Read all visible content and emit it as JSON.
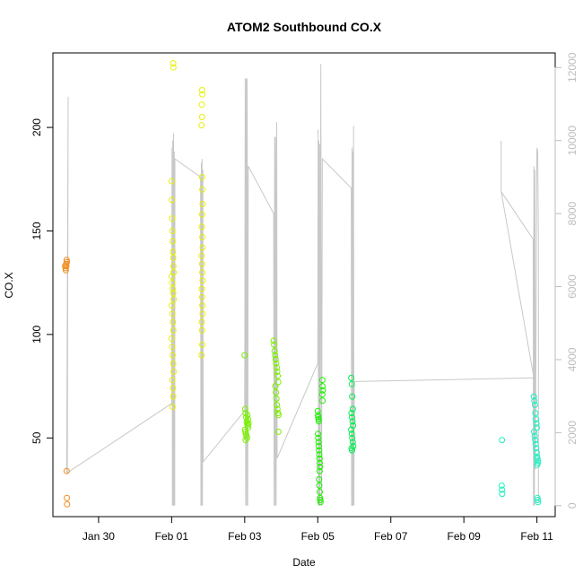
{
  "chart_data": {
    "type": "scatter",
    "title": "ATOM2 Southbound CO.X",
    "xlabel": "Date",
    "ylabel": "CO.X",
    "xlim": [
      "2020-01-28T18:00",
      "2020-02-11T12:00"
    ],
    "ylim": [
      12,
      236
    ],
    "y2lim": [
      -300,
      12400
    ],
    "y2label": "",
    "grid": false,
    "x_ticks": [
      {
        "date": "2020-01-30T00:00",
        "label": "Jan 30"
      },
      {
        "date": "2020-02-01T00:00",
        "label": "Feb 01"
      },
      {
        "date": "2020-02-03T00:00",
        "label": "Feb 03"
      },
      {
        "date": "2020-02-05T00:00",
        "label": "Feb 05"
      },
      {
        "date": "2020-02-07T00:00",
        "label": "Feb 07"
      },
      {
        "date": "2020-02-09T00:00",
        "label": "Feb 09"
      },
      {
        "date": "2020-02-11T00:00",
        "label": "Feb 11"
      }
    ],
    "y_ticks": [
      50,
      100,
      150,
      200
    ],
    "y2_ticks": [
      0,
      2000,
      4000,
      6000,
      8000,
      10000,
      12000
    ],
    "series": [
      {
        "kind": "points",
        "color": "#f28c1e",
        "points": [
          [
            "2020-01-29T02:00",
            133
          ],
          [
            "2020-01-29T02:20",
            132
          ],
          [
            "2020-01-29T02:40",
            134
          ],
          [
            "2020-01-29T03:00",
            136
          ],
          [
            "2020-01-29T03:10",
            135
          ],
          [
            "2020-01-29T02:30",
            131
          ],
          [
            "2020-01-29T02:50",
            133
          ],
          [
            "2020-01-29T03:00",
            34
          ],
          [
            "2020-01-29T03:10",
            21
          ],
          [
            "2020-01-29T03:20",
            18
          ]
        ]
      },
      {
        "kind": "points",
        "color": "#e6f000",
        "points": [
          [
            "2020-02-01T01:00",
            231
          ],
          [
            "2020-02-01T01:10",
            229
          ],
          [
            "2020-02-01T00:00",
            174
          ],
          [
            "2020-02-01T00:10",
            165
          ],
          [
            "2020-02-01T00:20",
            156
          ],
          [
            "2020-02-01T00:30",
            150
          ],
          [
            "2020-02-01T00:40",
            145
          ],
          [
            "2020-02-01T00:50",
            140
          ],
          [
            "2020-02-01T01:00",
            137
          ],
          [
            "2020-02-01T01:10",
            133
          ],
          [
            "2020-02-01T01:20",
            130
          ],
          [
            "2020-02-01T00:00",
            128
          ],
          [
            "2020-02-01T00:20",
            125
          ],
          [
            "2020-02-01T00:40",
            122
          ],
          [
            "2020-02-01T01:00",
            120
          ],
          [
            "2020-02-01T01:20",
            117
          ],
          [
            "2020-02-01T00:10",
            114
          ],
          [
            "2020-02-01T00:30",
            110
          ],
          [
            "2020-02-01T00:50",
            106
          ],
          [
            "2020-02-01T01:10",
            102
          ],
          [
            "2020-02-01T00:00",
            98
          ],
          [
            "2020-02-01T00:20",
            94
          ],
          [
            "2020-02-01T00:40",
            90
          ],
          [
            "2020-02-01T01:00",
            86
          ],
          [
            "2020-02-01T01:20",
            82
          ],
          [
            "2020-02-01T00:30",
            78
          ],
          [
            "2020-02-01T00:50",
            74
          ],
          [
            "2020-02-01T01:00",
            70
          ],
          [
            "2020-02-01T00:40",
            65
          ],
          [
            "2020-02-01T20:00",
            218
          ],
          [
            "2020-02-01T20:10",
            216
          ],
          [
            "2020-02-01T19:50",
            211
          ],
          [
            "2020-02-01T20:00",
            205
          ],
          [
            "2020-02-01T19:40",
            201
          ],
          [
            "2020-02-01T20:00",
            176
          ],
          [
            "2020-02-01T20:10",
            170
          ],
          [
            "2020-02-01T20:20",
            163
          ],
          [
            "2020-02-01T20:00",
            158
          ],
          [
            "2020-02-01T19:50",
            152
          ],
          [
            "2020-02-01T20:10",
            147
          ],
          [
            "2020-02-01T20:20",
            142
          ],
          [
            "2020-02-01T19:40",
            138
          ],
          [
            "2020-02-01T20:00",
            134
          ],
          [
            "2020-02-01T20:10",
            130
          ],
          [
            "2020-02-01T20:20",
            126
          ],
          [
            "2020-02-01T19:50",
            122
          ],
          [
            "2020-02-01T20:00",
            118
          ],
          [
            "2020-02-01T20:10",
            114
          ],
          [
            "2020-02-01T20:20",
            110
          ],
          [
            "2020-02-01T19:50",
            106
          ],
          [
            "2020-02-01T20:00",
            102
          ],
          [
            "2020-02-01T20:10",
            95
          ],
          [
            "2020-02-01T19:40",
            90
          ]
        ]
      },
      {
        "kind": "points",
        "color": "#7af000",
        "points": [
          [
            "2020-02-03T00:00",
            90
          ],
          [
            "2020-02-03T00:20",
            64
          ],
          [
            "2020-02-03T00:40",
            62
          ],
          [
            "2020-02-03T01:00",
            60
          ],
          [
            "2020-02-03T01:20",
            58
          ],
          [
            "2020-02-03T01:40",
            57
          ],
          [
            "2020-02-03T02:00",
            56
          ],
          [
            "2020-02-03T02:20",
            55
          ],
          [
            "2020-02-03T00:10",
            54
          ],
          [
            "2020-02-03T00:30",
            53
          ],
          [
            "2020-02-03T00:50",
            52
          ],
          [
            "2020-02-03T01:10",
            51
          ],
          [
            "2020-02-03T01:30",
            50
          ],
          [
            "2020-02-03T02:10",
            59
          ],
          [
            "2020-02-03T02:30",
            57
          ],
          [
            "2020-02-03T01:50",
            61
          ],
          [
            "2020-02-03T00:40",
            49
          ],
          [
            "2020-02-03T19:00",
            97
          ],
          [
            "2020-02-03T19:20",
            95
          ],
          [
            "2020-02-03T19:40",
            92
          ],
          [
            "2020-02-03T20:00",
            90
          ],
          [
            "2020-02-03T20:20",
            88
          ],
          [
            "2020-02-03T20:40",
            86
          ],
          [
            "2020-02-03T21:00",
            84
          ],
          [
            "2020-02-03T21:20",
            82
          ],
          [
            "2020-02-03T21:40",
            80
          ],
          [
            "2020-02-03T22:00",
            77
          ],
          [
            "2020-02-03T20:10",
            75
          ],
          [
            "2020-02-03T20:30",
            72
          ],
          [
            "2020-02-03T20:50",
            69
          ],
          [
            "2020-02-03T21:10",
            66
          ],
          [
            "2020-02-03T21:30",
            64
          ],
          [
            "2020-02-03T21:50",
            62
          ],
          [
            "2020-02-03T22:10",
            61
          ],
          [
            "2020-02-03T22:10",
            53
          ]
        ]
      },
      {
        "kind": "points",
        "color": "#1cf000",
        "points": [
          [
            "2020-02-05T00:00",
            63
          ],
          [
            "2020-02-05T00:10",
            61
          ],
          [
            "2020-02-05T00:20",
            60
          ],
          [
            "2020-02-05T00:30",
            59
          ],
          [
            "2020-02-05T00:40",
            58
          ],
          [
            "2020-02-05T00:10",
            52
          ],
          [
            "2020-02-05T00:20",
            50
          ],
          [
            "2020-02-05T00:30",
            48
          ],
          [
            "2020-02-05T00:40",
            46
          ],
          [
            "2020-02-05T00:50",
            44
          ],
          [
            "2020-02-05T01:00",
            42
          ],
          [
            "2020-02-05T01:10",
            40
          ],
          [
            "2020-02-05T01:20",
            38
          ],
          [
            "2020-02-05T01:30",
            36
          ],
          [
            "2020-02-05T01:10",
            34
          ],
          [
            "2020-02-05T00:50",
            30
          ],
          [
            "2020-02-05T01:00",
            27
          ],
          [
            "2020-02-05T01:20",
            24
          ],
          [
            "2020-02-05T01:30",
            21
          ],
          [
            "2020-02-05T01:40",
            20
          ],
          [
            "2020-02-05T01:50",
            19
          ],
          [
            "2020-02-05T03:00",
            78
          ],
          [
            "2020-02-05T03:10",
            75
          ],
          [
            "2020-02-05T03:20",
            73
          ],
          [
            "2020-02-05T03:00",
            71
          ],
          [
            "2020-02-05T03:10",
            68
          ]
        ]
      },
      {
        "kind": "points",
        "color": "#00f050",
        "points": [
          [
            "2020-02-05T22:00",
            79
          ],
          [
            "2020-02-05T22:20",
            76
          ],
          [
            "2020-02-05T22:40",
            70
          ],
          [
            "2020-02-05T23:00",
            64
          ],
          [
            "2020-02-05T22:10",
            62
          ],
          [
            "2020-02-05T22:30",
            60
          ],
          [
            "2020-02-05T22:50",
            58
          ],
          [
            "2020-02-05T23:10",
            56
          ],
          [
            "2020-02-05T22:00",
            54
          ],
          [
            "2020-02-05T22:20",
            52
          ],
          [
            "2020-02-05T22:40",
            50
          ],
          [
            "2020-02-05T23:00",
            48
          ],
          [
            "2020-02-05T23:20",
            46
          ],
          [
            "2020-02-05T22:10",
            45
          ],
          [
            "2020-02-05T22:30",
            44
          ]
        ]
      },
      {
        "kind": "points",
        "color": "#1ef0c0",
        "points": [
          [
            "2020-02-10T01:00",
            49
          ],
          [
            "2020-02-10T00:50",
            27
          ],
          [
            "2020-02-10T01:00",
            25
          ],
          [
            "2020-02-10T01:10",
            23
          ],
          [
            "2020-02-10T22:00",
            70
          ],
          [
            "2020-02-10T22:20",
            68
          ],
          [
            "2020-02-10T22:40",
            66
          ],
          [
            "2020-02-10T23:00",
            62
          ],
          [
            "2020-02-10T23:20",
            59
          ],
          [
            "2020-02-10T23:40",
            57
          ],
          [
            "2020-02-11T00:00",
            55
          ],
          [
            "2020-02-10T22:10",
            53
          ],
          [
            "2020-02-10T22:30",
            51
          ],
          [
            "2020-02-10T22:50",
            49
          ],
          [
            "2020-02-10T23:10",
            47
          ],
          [
            "2020-02-10T23:30",
            45
          ],
          [
            "2020-02-10T23:50",
            43
          ],
          [
            "2020-02-11T00:10",
            41
          ],
          [
            "2020-02-11T00:20",
            40
          ],
          [
            "2020-02-11T00:30",
            39
          ],
          [
            "2020-02-11T00:40",
            38
          ],
          [
            "2020-02-11T00:10",
            37
          ],
          [
            "2020-02-11T00:20",
            21
          ],
          [
            "2020-02-11T00:30",
            20
          ],
          [
            "2020-02-11T00:40",
            19
          ]
        ]
      },
      {
        "kind": "line",
        "axis": "right",
        "color": "#c8c8c8",
        "points": [
          [
            "2020-01-29T03:00",
            900
          ],
          [
            "2020-01-29T04:00",
            11200
          ],
          [
            "2020-01-29T03:30",
            900
          ],
          [
            "2020-02-01T00:00",
            2800
          ],
          [
            "2020-02-01T00:15",
            9800
          ],
          [
            "2020-02-01T00:30",
            0
          ],
          [
            "2020-02-01T00:45",
            10000
          ],
          [
            "2020-02-01T01:00",
            0
          ],
          [
            "2020-02-01T01:15",
            10200
          ],
          [
            "2020-02-01T01:30",
            0
          ],
          [
            "2020-02-01T01:45",
            9700
          ],
          [
            "2020-02-01T02:00",
            0
          ],
          [
            "2020-02-01T02:10",
            9500
          ],
          [
            "2020-02-01T19:00",
            9000
          ],
          [
            "2020-02-01T19:15",
            0
          ],
          [
            "2020-02-01T19:30",
            9400
          ],
          [
            "2020-02-01T19:45",
            0
          ],
          [
            "2020-02-01T20:00",
            9500
          ],
          [
            "2020-02-01T20:15",
            0
          ],
          [
            "2020-02-01T20:30",
            9200
          ],
          [
            "2020-02-01T20:45",
            1200
          ],
          [
            "2020-02-03T00:00",
            2600
          ],
          [
            "2020-02-03T00:20",
            11700
          ],
          [
            "2020-02-03T00:40",
            0
          ],
          [
            "2020-02-03T01:00",
            11700
          ],
          [
            "2020-02-03T01:20",
            0
          ],
          [
            "2020-02-03T01:40",
            11700
          ],
          [
            "2020-02-03T02:00",
            0
          ],
          [
            "2020-02-03T02:20",
            9300
          ],
          [
            "2020-02-03T19:00",
            8000
          ],
          [
            "2020-02-03T19:20",
            0
          ],
          [
            "2020-02-03T19:40",
            10100
          ],
          [
            "2020-02-03T20:00",
            0
          ],
          [
            "2020-02-03T20:20",
            10100
          ],
          [
            "2020-02-03T20:40",
            0
          ],
          [
            "2020-02-03T21:00",
            10500
          ],
          [
            "2020-02-03T21:20",
            1300
          ],
          [
            "2020-02-05T00:00",
            3900
          ],
          [
            "2020-02-05T00:15",
            10300
          ],
          [
            "2020-02-05T00:30",
            0
          ],
          [
            "2020-02-05T00:45",
            10000
          ],
          [
            "2020-02-05T01:00",
            0
          ],
          [
            "2020-02-05T01:15",
            9900
          ],
          [
            "2020-02-05T01:30",
            0
          ],
          [
            "2020-02-05T02:00",
            12100
          ],
          [
            "2020-02-05T02:30",
            0
          ],
          [
            "2020-02-05T03:00",
            9500
          ],
          [
            "2020-02-05T22:00",
            8700
          ],
          [
            "2020-02-05T22:15",
            0
          ],
          [
            "2020-02-05T22:30",
            9800
          ],
          [
            "2020-02-05T22:45",
            0
          ],
          [
            "2020-02-05T23:00",
            9700
          ],
          [
            "2020-02-05T23:15",
            0
          ],
          [
            "2020-02-05T23:30",
            10400
          ],
          [
            "2020-02-05T23:45",
            0
          ],
          [
            "2020-02-06T00:00",
            3400
          ],
          [
            "2020-02-10T22:00",
            3500
          ],
          [
            "2020-02-10T00:30",
            8600
          ],
          [
            "2020-02-10T00:30",
            10000
          ],
          [
            "2020-02-10T00:30",
            8600
          ],
          [
            "2020-02-10T21:30",
            7300
          ],
          [
            "2020-02-10T21:45",
            0
          ],
          [
            "2020-02-10T22:00",
            9300
          ],
          [
            "2020-02-10T22:20",
            0
          ],
          [
            "2020-02-10T22:40",
            9200
          ],
          [
            "2020-02-10T23:00",
            1000
          ],
          [
            "2020-02-11T00:00",
            9800
          ],
          [
            "2020-02-11T00:30",
            9700
          ],
          [
            "2020-02-11T01:00",
            7300
          ],
          [
            "2020-02-11T01:00",
            100
          ]
        ]
      }
    ]
  }
}
